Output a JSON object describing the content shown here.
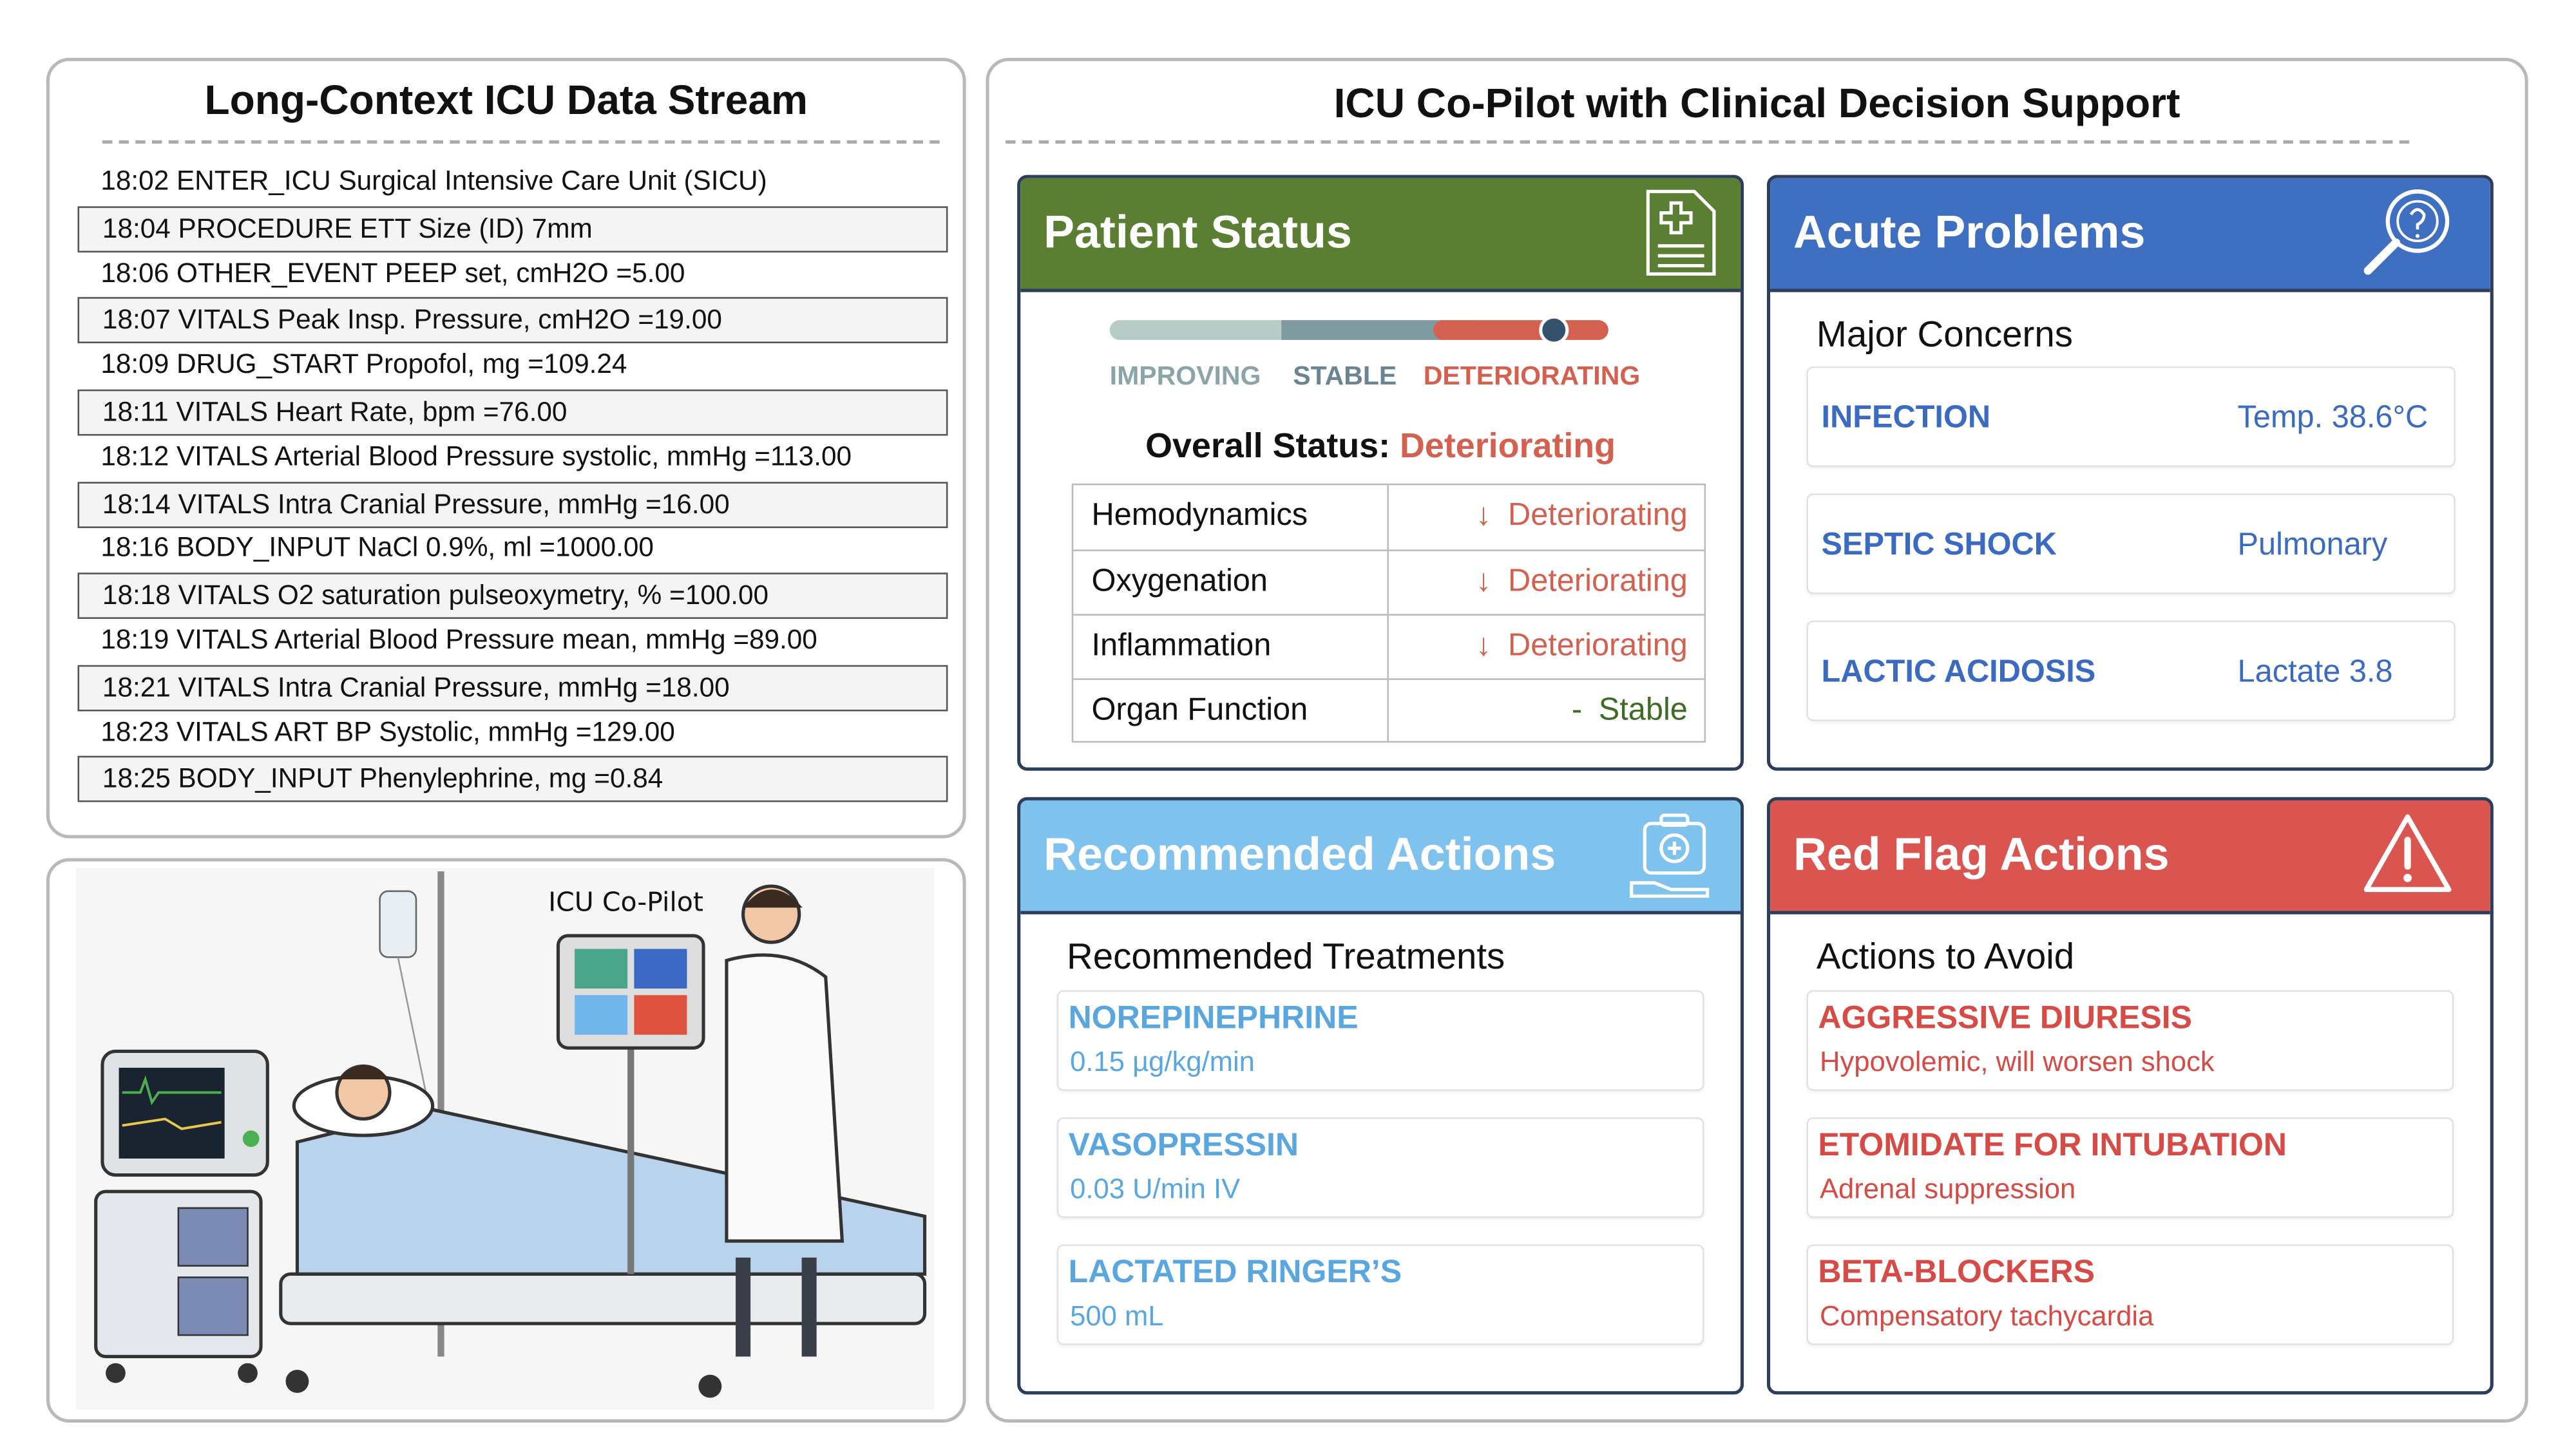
{
  "left_panel": {
    "title": "Long-Context ICU Data Stream",
    "stream": [
      "18:02 ENTER_ICU Surgical Intensive Care Unit (SICU)",
      "18:04 PROCEDURE ETT Size (ID) 7mm",
      "18:06 OTHER_EVENT PEEP set, cmH2O =5.00",
      "18:07 VITALS Peak Insp. Pressure, cmH2O =19.00",
      "18:09 DRUG_START Propofol, mg =109.24",
      "18:11 VITALS Heart Rate, bpm =76.00",
      "18:12 VITALS Arterial Blood Pressure systolic, mmHg =113.00",
      "18:14 VITALS Intra Cranial Pressure, mmHg =16.00",
      "18:16 BODY_INPUT NaCl 0.9%, ml =1000.00",
      "18:18 VITALS O2 saturation pulseoxymetry, % =100.00",
      "18:19 VITALS Arterial Blood Pressure mean, mmHg =89.00",
      "18:21 VITALS Intra Cranial Pressure, mmHg =18.00",
      "18:23 VITALS ART BP Systolic, mmHg =129.00",
      "18:25 BODY_INPUT Phenylephrine, mg =0.84"
    ]
  },
  "illustration": {
    "label": "ICU Co-Pilot"
  },
  "main": {
    "title": "ICU Co-Pilot with Clinical Decision Support",
    "patient_status": {
      "title": "Patient Status",
      "scale_labels": [
        "IMPROVING",
        "STABLE",
        "DETERIORATING"
      ],
      "overall_label": "Overall Status:",
      "overall_value": "Deteriorating",
      "rows": [
        {
          "name": "Hemodynamics",
          "trend": "↓",
          "status": "Deteriorating"
        },
        {
          "name": "Oxygenation",
          "trend": "↓",
          "status": "Deteriorating"
        },
        {
          "name": "Inflammation",
          "trend": "↓",
          "status": "Deteriorating"
        },
        {
          "name": "Organ Function",
          "trend": "-",
          "status": "Stable"
        }
      ]
    },
    "acute_problems": {
      "title": "Acute Problems",
      "subtitle": "Major Concerns",
      "items": [
        {
          "name": "INFECTION",
          "detail": "Temp. 38.6°C"
        },
        {
          "name": "SEPTIC SHOCK",
          "detail": "Pulmonary"
        },
        {
          "name": "LACTIC ACIDOSIS",
          "detail": "Lactate 3.8"
        }
      ]
    },
    "recommended_actions": {
      "title": "Recommended Actions",
      "subtitle": "Recommended Treatments",
      "items": [
        {
          "name": "NOREPINEPHRINE",
          "detail": "0.15 µg/kg/min"
        },
        {
          "name": "VASOPRESSIN",
          "detail": "0.03 U/min IV"
        },
        {
          "name": "LACTATED RINGER’S",
          "detail": "500 mL"
        }
      ]
    },
    "red_flag_actions": {
      "title": "Red Flag Actions",
      "subtitle": "Actions to Avoid",
      "items": [
        {
          "name": "AGGRESSIVE DIURESIS",
          "detail": "Hypovolemic, will worsen shock"
        },
        {
          "name": "ETOMIDATE FOR INTUBATION",
          "detail": "Adrenal suppression"
        },
        {
          "name": "BETA-BLOCKERS",
          "detail": "Compensatory tachycardia"
        }
      ]
    }
  }
}
